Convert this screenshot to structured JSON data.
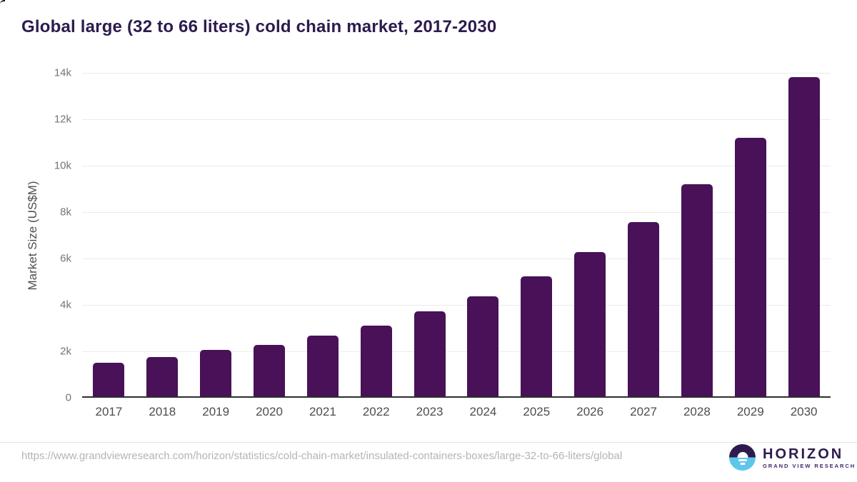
{
  "title": "Global large (32 to 66 liters) cold chain market, 2017-2030",
  "chart_data": {
    "type": "bar",
    "title": "Global large (32 to 66 liters) cold chain market, 2017-2030",
    "categories": [
      "2017",
      "2018",
      "2019",
      "2020",
      "2021",
      "2022",
      "2023",
      "2024",
      "2025",
      "2026",
      "2027",
      "2028",
      "2029",
      "2030"
    ],
    "values": [
      1450,
      1700,
      2000,
      2210,
      2610,
      3060,
      3650,
      4320,
      5170,
      6230,
      7500,
      9140,
      11150,
      13740
    ],
    "xlabel": "",
    "ylabel": "Market Size (US$M)",
    "ylim": [
      0,
      14000
    ],
    "yticks": {
      "values": [
        0,
        2000,
        4000,
        6000,
        8000,
        10000,
        12000,
        14000
      ],
      "labels": [
        "0",
        "2k",
        "4k",
        "6k",
        "8k",
        "10k",
        "12k",
        "14k"
      ]
    },
    "grid": true,
    "legend": false,
    "bar_color": "#481158"
  },
  "footer": {
    "source_url": "https://www.grandviewresearch.com/horizon/statistics/cold-chain-market/insulated-containers-boxes/large-32-to-66-liters/global",
    "logo_name": "HORIZON",
    "logo_tagline": "GRAND VIEW RESEARCH"
  },
  "colors": {
    "bar": "#481158",
    "title_text": "#2d1b4e",
    "axis_line": "#2e2e2e",
    "gridline": "#ebebeb",
    "tick_text": "#757575",
    "url_text": "#b4b4b4",
    "logo_purple": "#2d1b4e",
    "logo_blue": "#5ec6ea"
  }
}
